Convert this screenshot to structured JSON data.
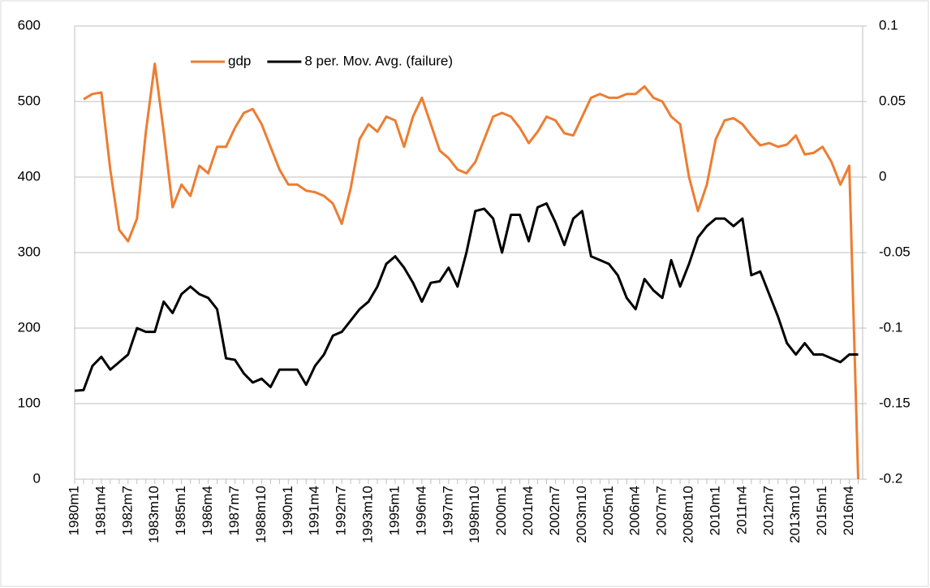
{
  "chart_data": {
    "type": "line",
    "categories": [
      "1980m1",
      null,
      null,
      "1981m4",
      null,
      null,
      "1982m7",
      null,
      null,
      "1983m10",
      null,
      null,
      "1985m1",
      null,
      null,
      "1986m4",
      null,
      null,
      "1987m7",
      null,
      null,
      "1988m10",
      null,
      null,
      "1990m1",
      null,
      null,
      "1991m4",
      null,
      null,
      "1992m7",
      null,
      null,
      "1993m10",
      null,
      null,
      "1995m1",
      null,
      null,
      "1996m4",
      null,
      null,
      "1997m7",
      null,
      null,
      "1998m10",
      null,
      null,
      "2000m1",
      null,
      null,
      "2001m4",
      null,
      null,
      "2002m7",
      null,
      null,
      "2003m10",
      null,
      null,
      "2005m1",
      null,
      null,
      "2006m4",
      null,
      null,
      "2007m7",
      null,
      null,
      "2008m10",
      null,
      null,
      "2010m1",
      null,
      null,
      "2011m4",
      null,
      null,
      "2012m7",
      null,
      null,
      "2013m10",
      null,
      null,
      "2015m1",
      null,
      null,
      "2016m4",
      null
    ],
    "series": [
      {
        "name": "gdp",
        "color": "#ED7D31",
        "values": [
          null,
          503,
          510,
          512,
          410,
          330,
          315,
          345,
          460,
          550,
          460,
          360,
          390,
          375,
          415,
          405,
          440,
          440,
          465,
          485,
          490,
          470,
          440,
          410,
          390,
          390,
          382,
          380,
          375,
          365,
          338,
          385,
          450,
          470,
          460,
          480,
          475,
          440,
          480,
          505,
          470,
          435,
          425,
          410,
          405,
          420,
          450,
          480,
          485,
          480,
          465,
          445,
          460,
          480,
          475,
          458,
          455,
          480,
          505,
          510,
          505,
          505,
          510,
          510,
          520,
          505,
          500,
          480,
          470,
          400,
          355,
          390,
          450,
          475,
          478,
          470,
          455,
          442,
          445,
          440,
          443,
          455,
          430,
          432,
          440,
          420,
          390,
          415,
          0
        ]
      },
      {
        "name": "8 per. Mov. Avg. (failure)",
        "color": "#000000",
        "axis": "y2",
        "values": [
          -0.1415,
          -0.141,
          -0.125,
          -0.119,
          -0.1275,
          -0.1225,
          -0.1175,
          -0.1,
          -0.1025,
          -0.1025,
          -0.0825,
          -0.09,
          -0.0775,
          -0.0725,
          -0.0775,
          -0.08,
          -0.0875,
          -0.12,
          -0.121,
          -0.13,
          -0.136,
          -0.1335,
          -0.139,
          -0.1275,
          -0.1275,
          -0.1275,
          -0.1375,
          -0.125,
          -0.1175,
          -0.105,
          -0.1025,
          -0.095,
          -0.0875,
          -0.0825,
          -0.0725,
          -0.0575,
          -0.0525,
          -0.06,
          -0.07,
          -0.0825,
          -0.07,
          -0.069,
          -0.06,
          -0.0725,
          -0.05,
          -0.0225,
          -0.021,
          -0.0275,
          -0.05,
          -0.025,
          -0.025,
          -0.0425,
          -0.02,
          -0.0175,
          -0.03,
          -0.045,
          -0.0275,
          -0.0225,
          -0.0525,
          -0.055,
          -0.0575,
          -0.065,
          -0.08,
          -0.0875,
          -0.0675,
          -0.075,
          -0.08,
          -0.055,
          -0.0725,
          -0.0575,
          -0.04,
          -0.0325,
          -0.0275,
          -0.0275,
          -0.0325,
          -0.0275,
          -0.065,
          -0.0625,
          -0.0775,
          -0.0925,
          -0.11,
          -0.1175,
          -0.11,
          -0.1175,
          -0.1175,
          -0.12,
          -0.1225,
          -0.1175,
          -0.1175
        ]
      }
    ],
    "ylim": [
      0,
      600
    ],
    "yticks": [
      0,
      100,
      200,
      300,
      400,
      500,
      600
    ],
    "y2lim": [
      -0.2,
      0.1
    ],
    "y2ticks": [
      -0.2,
      -0.15,
      -0.1,
      -0.05,
      0,
      0.05,
      0.1
    ],
    "grid": true,
    "legend": "top"
  }
}
